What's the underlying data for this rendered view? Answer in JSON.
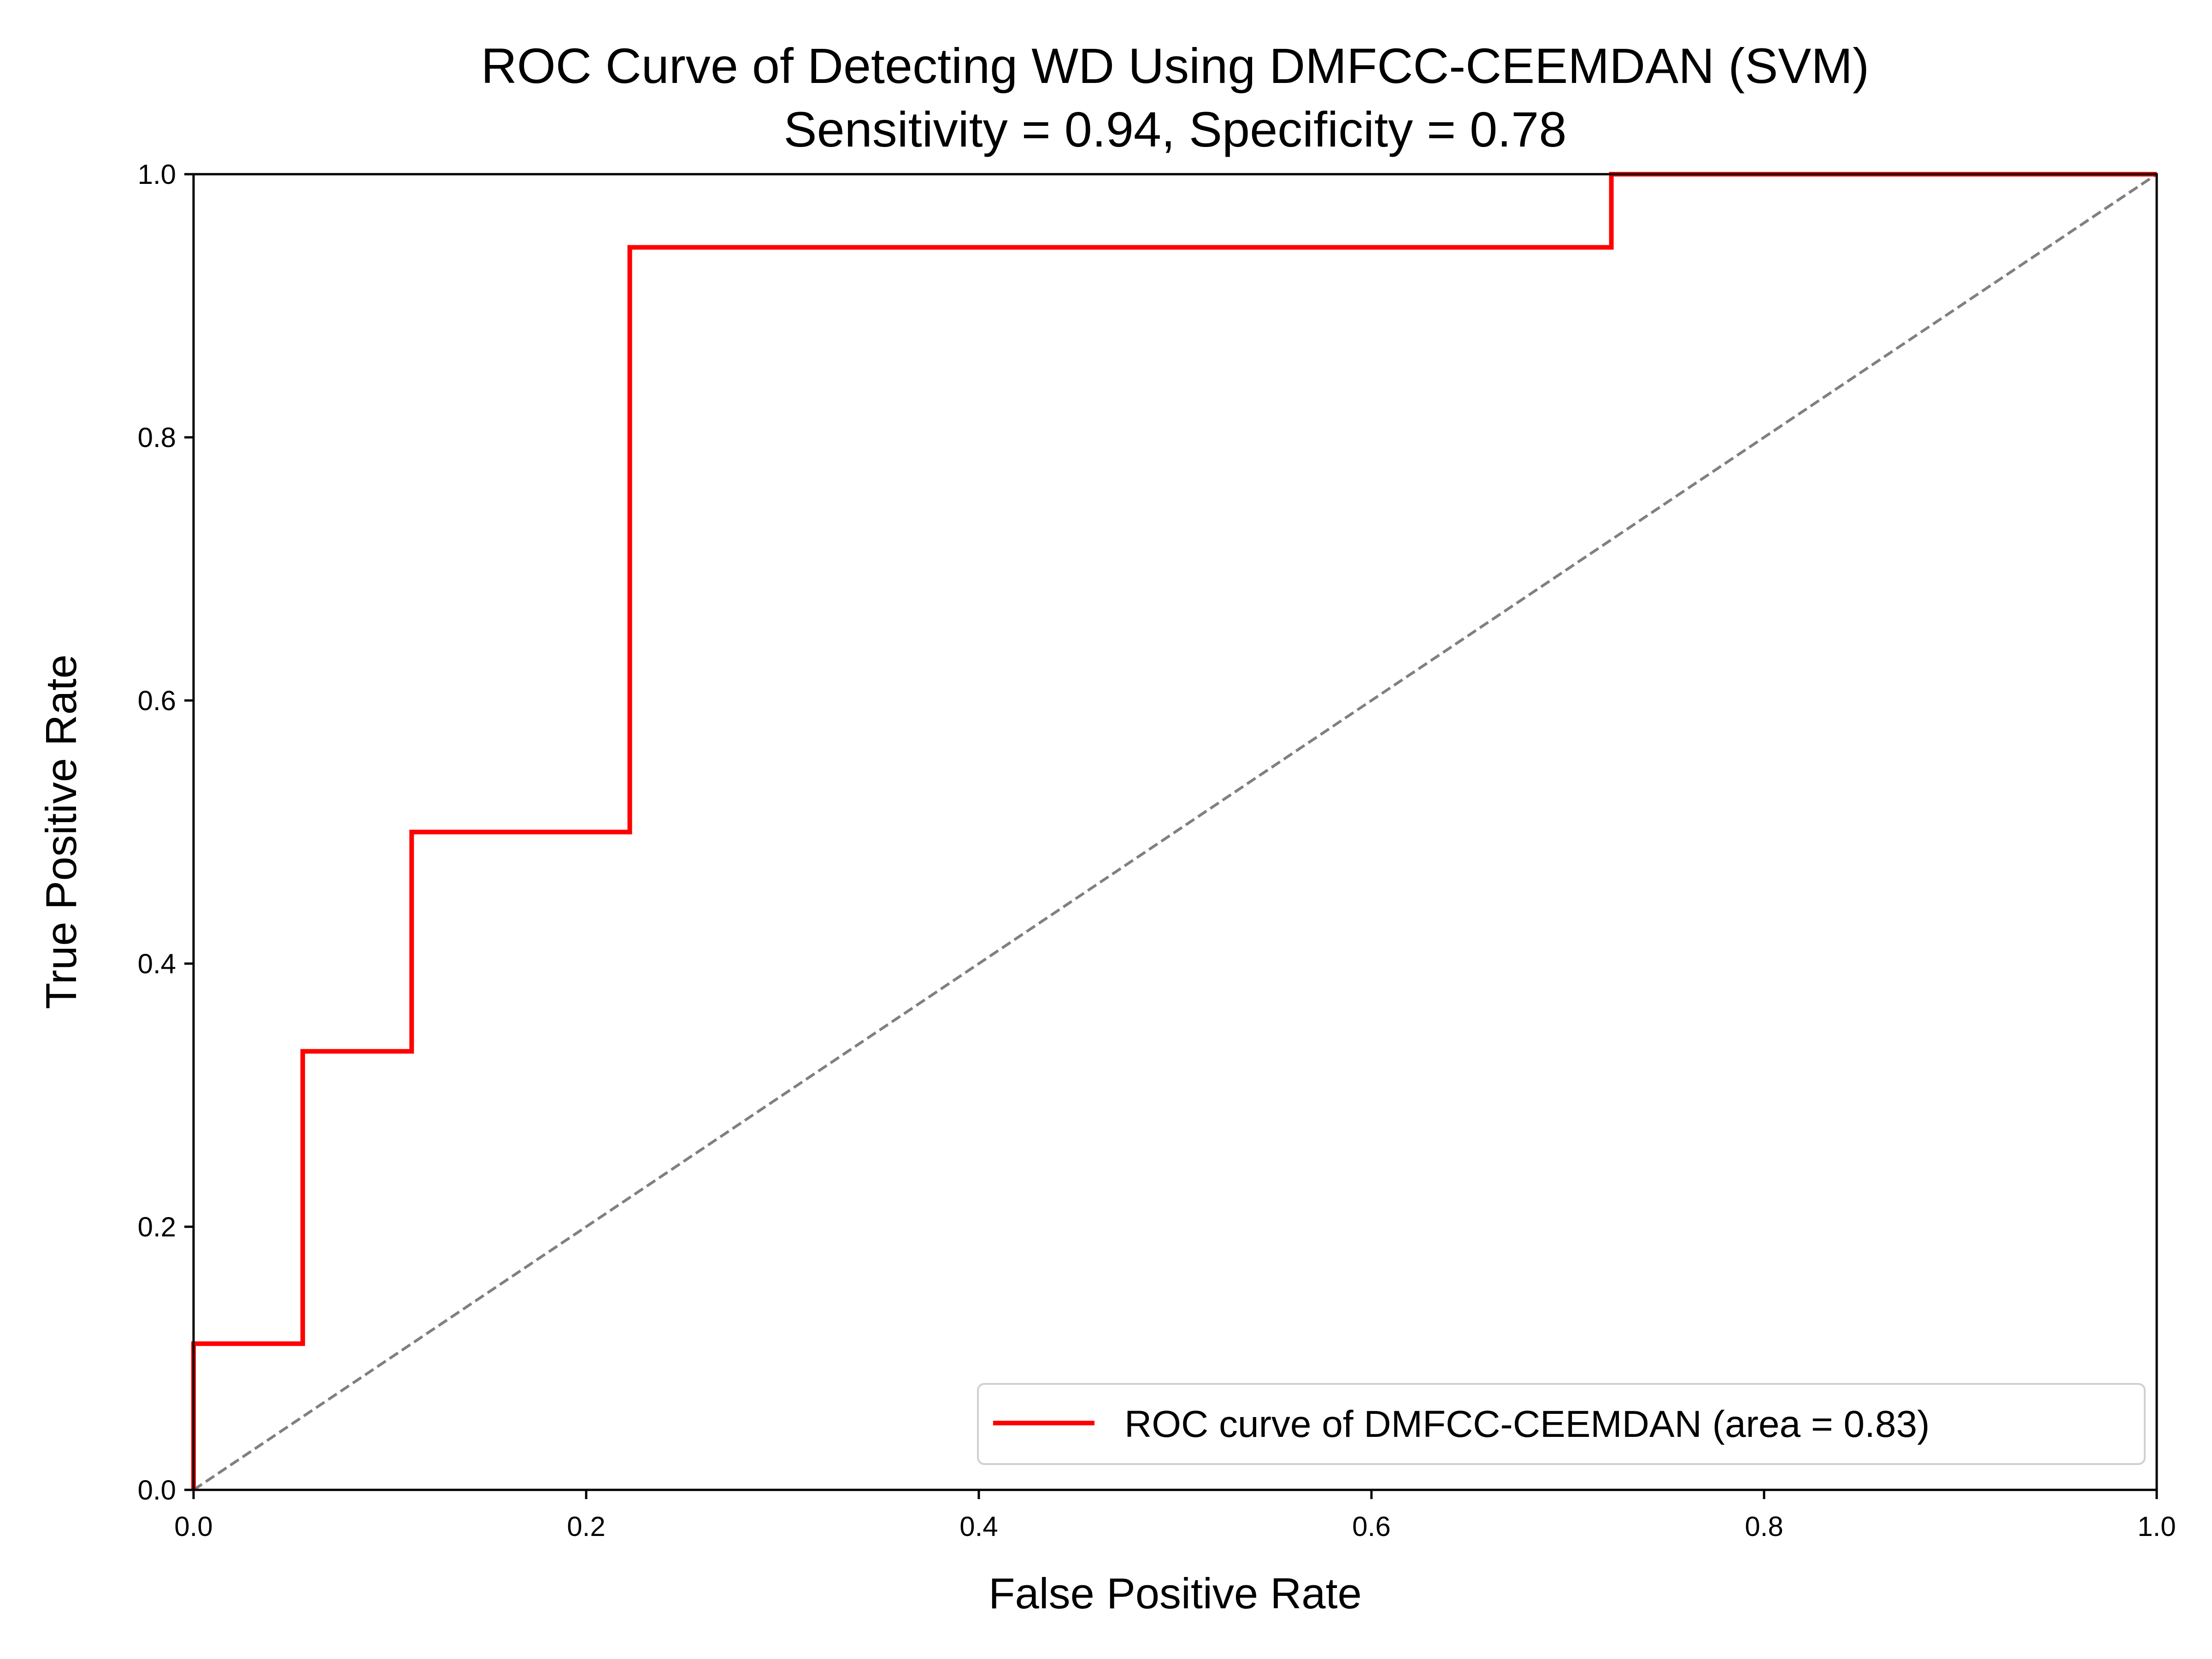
{
  "chart_data": {
    "type": "line",
    "title": "ROC Curve of Detecting WD Using DMFCC-CEEMDAN (SVM)",
    "subtitle": "Sensitivity = 0.94, Specificity = 0.78",
    "xlabel": "False Positive Rate",
    "ylabel": "True Positive Rate",
    "xlim": [
      0.0,
      1.0
    ],
    "ylim": [
      0.0,
      1.0
    ],
    "xticks": [
      "0.0",
      "0.2",
      "0.4",
      "0.6",
      "0.8",
      "1.0"
    ],
    "yticks": [
      "0.0",
      "0.2",
      "0.4",
      "0.6",
      "0.8",
      "1.0"
    ],
    "grid": false,
    "legend_position": "lower-right",
    "series": [
      {
        "name": "ROC curve of DMFCC-CEEMDAN (area = 0.83)",
        "color": "#ff0000",
        "style": "solid",
        "x": [
          0.0,
          0.0,
          0.0556,
          0.0556,
          0.1111,
          0.1111,
          0.2222,
          0.2222,
          0.7222,
          0.7222,
          1.0
        ],
        "y": [
          0.0,
          0.1111,
          0.1111,
          0.3333,
          0.3333,
          0.5,
          0.5,
          0.9444,
          0.9444,
          1.0,
          1.0
        ]
      },
      {
        "color": "#808080",
        "style": "dashed",
        "x": [
          0.0,
          1.0
        ],
        "y": [
          0.0,
          1.0
        ]
      }
    ]
  }
}
